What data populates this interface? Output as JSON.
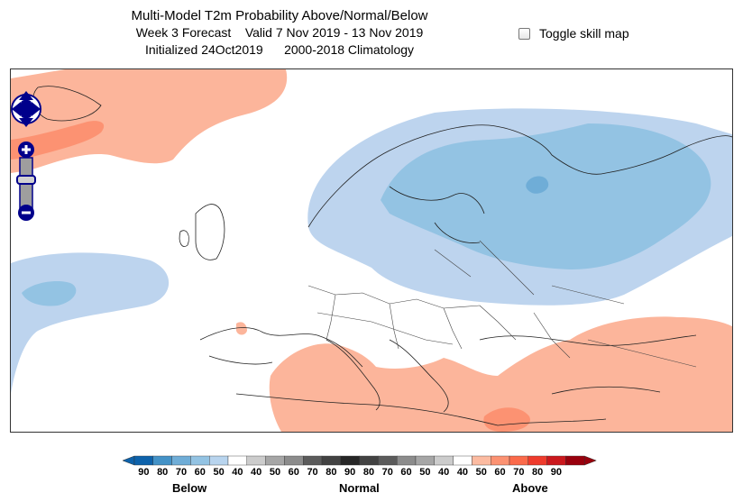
{
  "header": {
    "title": "Multi-Model T2m Probability Above/Normal/Below",
    "forecast": "Week 3 Forecast",
    "valid": "Valid 7 Nov 2019 - 13 Nov 2019",
    "initialized": "Initialized 24Oct2019",
    "climatology": "2000-2018 Climatology"
  },
  "skill_toggle": {
    "label": "Toggle skill map",
    "checked": false
  },
  "map": {
    "region": "Europe",
    "controls": [
      "pan-control",
      "zoom-in",
      "zoom-slider",
      "zoom-out"
    ],
    "anomaly_regions": [
      {
        "category": "Below",
        "probability": 50,
        "location": "Scandinavia, Baltic, Finland, western Russia"
      },
      {
        "category": "Below",
        "probability": 60,
        "location": "Finland, Baltic, western Russia"
      },
      {
        "category": "Below",
        "probability": 70,
        "location": "Finland / Gulf of Bothnia"
      },
      {
        "category": "Below",
        "probability": 50,
        "location": "eastern Atlantic, off Iberia"
      },
      {
        "category": "Below",
        "probability": 60,
        "location": "eastern Atlantic, off Iberia"
      },
      {
        "category": "Above",
        "probability": 50,
        "location": "Iceland / north Atlantic"
      },
      {
        "category": "Above",
        "probability": 60,
        "location": "Greenland / Iceland"
      },
      {
        "category": "Above",
        "probability": 50,
        "location": "Mediterranean, Iberia, North Africa"
      },
      {
        "category": "Above",
        "probability": 50,
        "location": "Turkey, Caucasus, Middle East"
      },
      {
        "category": "Above",
        "probability": 60,
        "location": "Libya / Egypt"
      }
    ]
  },
  "legend": {
    "ticks": [
      "90",
      "80",
      "70",
      "60",
      "50",
      "40",
      "40",
      "50",
      "60",
      "70",
      "80",
      "90",
      "80",
      "70",
      "60",
      "50",
      "40",
      "40",
      "50",
      "60",
      "70",
      "80",
      "90"
    ],
    "categories": [
      "Below",
      "Normal",
      "Above"
    ],
    "colors": [
      "#0d62ab",
      "#4392c7",
      "#6fadd7",
      "#93c3e3",
      "#b8d4ee",
      "#ffffff",
      "#cccccc",
      "#a6a6a6",
      "#8c8c8c",
      "#5b5b5b",
      "#424242",
      "#262626",
      "#424242",
      "#5b5b5b",
      "#8c8c8c",
      "#a6a6a6",
      "#cccccc",
      "#ffffff",
      "#fcbba1",
      "#fc9272",
      "#fb6a4a",
      "#ef3b2c",
      "#cb181d",
      "#99000d"
    ]
  },
  "colors": {
    "below_50": "#bdd4ee",
    "below_60": "#93c3e3",
    "below_70": "#6fadd7",
    "above_50": "#fcb59b",
    "above_60": "#fc9272",
    "control_blue": "#00008b"
  }
}
